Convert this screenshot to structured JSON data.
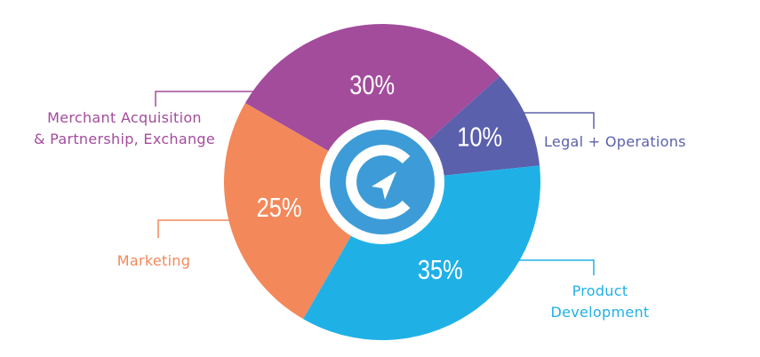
{
  "chart_data": {
    "type": "pie",
    "categories": [
      "Merchant Acquisition\n& Partnership, Exchange",
      "Legal + Operations",
      "Product\nDevelopment",
      "Marketing"
    ],
    "values": [
      30,
      10,
      35,
      25
    ],
    "value_labels": [
      "30%",
      "10%",
      "35%",
      "25%"
    ],
    "colors": [
      "#a34c9c",
      "#5b60ac",
      "#1fb1e6",
      "#f3885a"
    ]
  }
}
